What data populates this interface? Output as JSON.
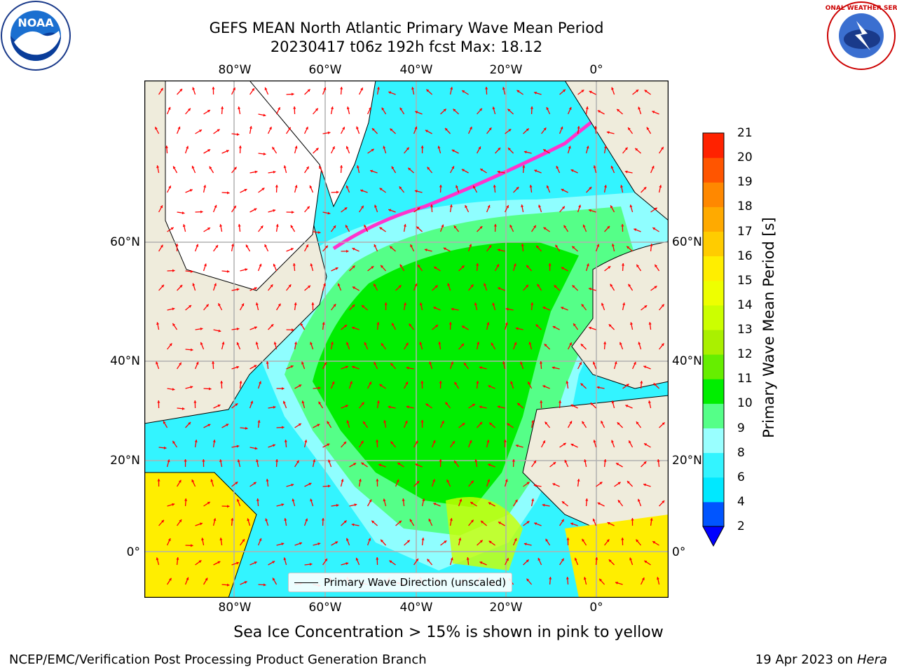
{
  "title": {
    "line1": "GEFS MEAN North Atlantic Primary Wave Mean Period",
    "line2": "20230417 t06z 192h fcst   Max: 18.12"
  },
  "map": {
    "lon_ticks": [
      "80°W",
      "60°W",
      "40°W",
      "20°W",
      "0°"
    ],
    "lat_ticks_left": [
      "60°N",
      "40°N",
      "20°N",
      "0°"
    ],
    "lat_ticks_right": [
      "60°N",
      "40°N",
      "20°N",
      "0°"
    ],
    "extent": {
      "lon": [
        -100,
        15
      ],
      "lat": [
        -8,
        80
      ]
    },
    "colors": {
      "land": "#efecdc",
      "ice": "#ffffff",
      "grid": "#b0b0b0",
      "arrows": "#ff0000"
    }
  },
  "legend": {
    "label": "Primary Wave Direction (unscaled)"
  },
  "colorbar": {
    "label": "Primary Wave Mean Period [s]",
    "ticks": [
      "2",
      "4",
      "6",
      "8",
      "9",
      "10",
      "11",
      "12",
      "13",
      "14",
      "15",
      "16",
      "17",
      "18",
      "19",
      "20",
      "21"
    ],
    "colors": [
      "#0055ff",
      "#00e8ff",
      "#33f4ff",
      "#99ffff",
      "#55ff88",
      "#00ee00",
      "#66ee00",
      "#aaf000",
      "#ccff00",
      "#eeff00",
      "#ffee00",
      "#ffcc00",
      "#ffaa00",
      "#ff8800",
      "#ff5500",
      "#ff2200"
    ],
    "under_color": "#0000ff"
  },
  "ice_note": "Sea Ice Concentration > 15% is shown in pink to yellow",
  "footer": {
    "left": "NCEP/EMC/Verification Post Processing Product Generation Branch",
    "right_date": "19 Apr 2023 on ",
    "right_machine": "Hera"
  },
  "logos": {
    "noaa_text": "NOAA",
    "nws_text": "NATIONAL WEATHER SERVICE"
  }
}
